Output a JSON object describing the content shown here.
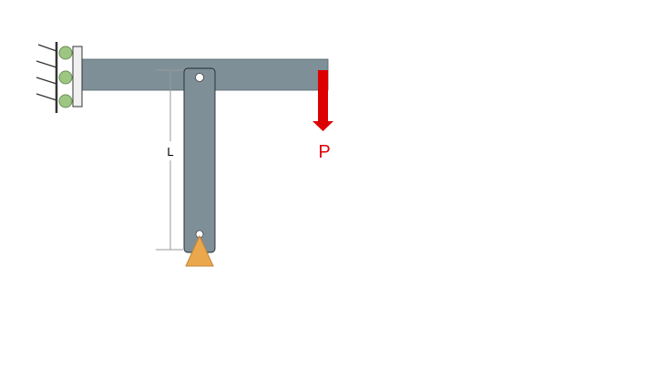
{
  "diagram": {
    "dimension_label": "L",
    "load_label": "P"
  },
  "colors": {
    "member": "#7f8f98",
    "member_edge": "#55636b",
    "roller": "#9dc682",
    "roller_edge": "#6e8f58",
    "support_triangle": "#eba74c",
    "support_triangle_edge": "#c0853a",
    "load_arrow": "#dd0000",
    "wall_plate": "#f0f0f0",
    "wall": "#333333",
    "dimension_line": "#999999"
  },
  "icons": {
    "roller_support": "roller-support-icon",
    "pin_support": "pin-support-icon",
    "load_arrow": "down-arrow-icon"
  }
}
